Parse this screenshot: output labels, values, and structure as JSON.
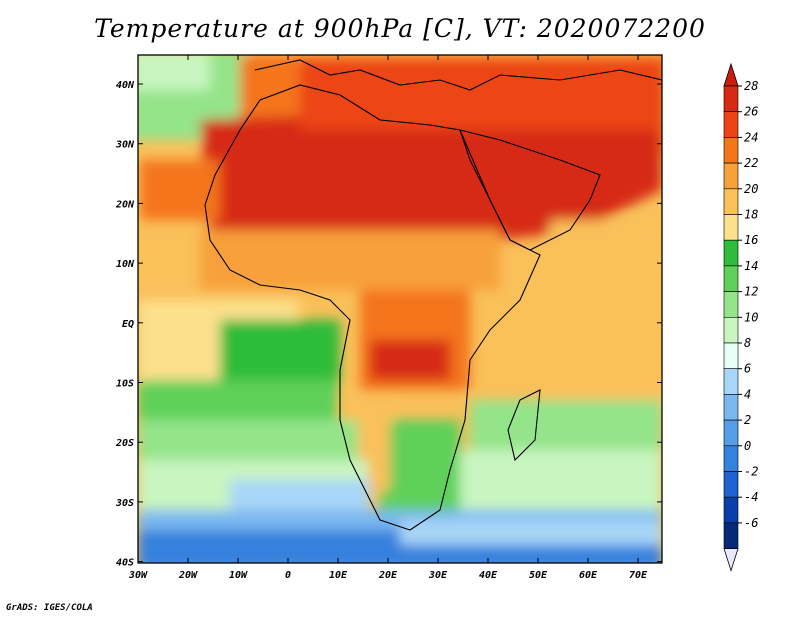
{
  "title": "Temperature at 900hPa [C], VT: 2020072200",
  "credit": "GrADS: IGES/COLA",
  "map": {
    "lon_ticks": [
      "30W",
      "20W",
      "10W",
      "0",
      "10E",
      "20E",
      "30E",
      "40E",
      "50E",
      "60E",
      "70E"
    ],
    "lat_ticks": [
      "40N",
      "30N",
      "20N",
      "10N",
      "EQ",
      "10S",
      "20S",
      "30S",
      "40S"
    ]
  },
  "colorbar": {
    "labels": [
      "28",
      "26",
      "24",
      "22",
      "20",
      "18",
      "16",
      "14",
      "12",
      "10",
      "8",
      "6",
      "4",
      "2",
      "0",
      "-2",
      "-4",
      "-6"
    ],
    "colors": [
      "#d62a12",
      "#ec4414",
      "#f4751c",
      "#f8a03a",
      "#fac05a",
      "#fde08c",
      "#2fbc3a",
      "#5fd05a",
      "#94e48a",
      "#c8f5c0",
      "#e8fff5",
      "#a8d6f8",
      "#7ab8ef",
      "#559de6",
      "#3581de",
      "#1d62cf",
      "#0a3fa9",
      "#062a78"
    ],
    "under_color": "#e8e8ff",
    "over_color": "#cc1c0c"
  }
}
